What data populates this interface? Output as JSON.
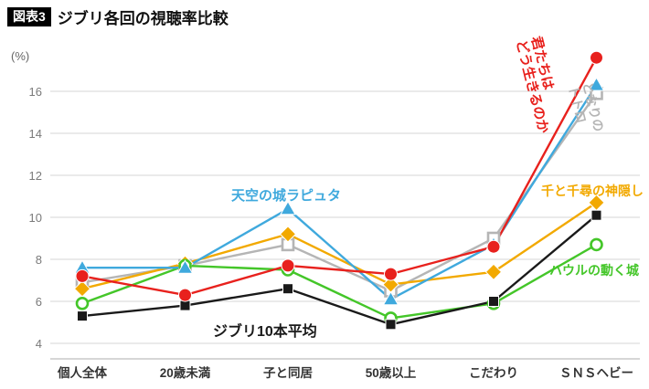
{
  "title": {
    "badge": "図表3",
    "text": "ジブリ各回の視聴率比較"
  },
  "chart_data": {
    "type": "line",
    "title": "ジブリ各回の視聴率比較",
    "unit_label": "(%)",
    "categories": [
      "個人全体",
      "20歳未満",
      "子と同居",
      "50歳以上",
      "こだわり",
      "ＳＮＳヘビー"
    ],
    "yticks": [
      4,
      6,
      8,
      10,
      12,
      14,
      16
    ],
    "ylim": [
      4,
      18
    ],
    "grid": "horizontal",
    "legend_position": "inline-annotations",
    "series": [
      {
        "name": "君たちはどう生きるのか",
        "label_lines": [
          "君たちは",
          "どう生きるのか"
        ],
        "color": "#e8211d",
        "marker": "circle-filled",
        "values": [
          7.2,
          6.3,
          7.7,
          7.3,
          8.6,
          17.6
        ]
      },
      {
        "name": "天空の城ラピュタ",
        "color": "#3fa9dd",
        "marker": "triangle-filled",
        "values": [
          7.6,
          7.6,
          10.4,
          6.1,
          8.7,
          16.3
        ]
      },
      {
        "name": "となりのトトロ",
        "label_lines": [
          "となりの",
          "トトロ"
        ],
        "color": "#b5b5b5",
        "marker": "square-open",
        "values": [
          6.9,
          7.7,
          8.7,
          6.5,
          9.0,
          15.9
        ]
      },
      {
        "name": "千と千尋の神隠し",
        "color": "#f2a900",
        "marker": "diamond-filled",
        "values": [
          6.6,
          7.8,
          9.2,
          6.8,
          7.4,
          10.7
        ]
      },
      {
        "name": "ハウルの動く城",
        "color": "#44c629",
        "marker": "circle-open",
        "values": [
          5.9,
          7.7,
          7.5,
          5.2,
          5.9,
          8.7
        ]
      },
      {
        "name": "ジブリ10本平均",
        "color": "#1a1a1a",
        "marker": "square-filled",
        "values": [
          5.3,
          5.8,
          6.6,
          4.9,
          6.0,
          10.1
        ]
      }
    ]
  }
}
